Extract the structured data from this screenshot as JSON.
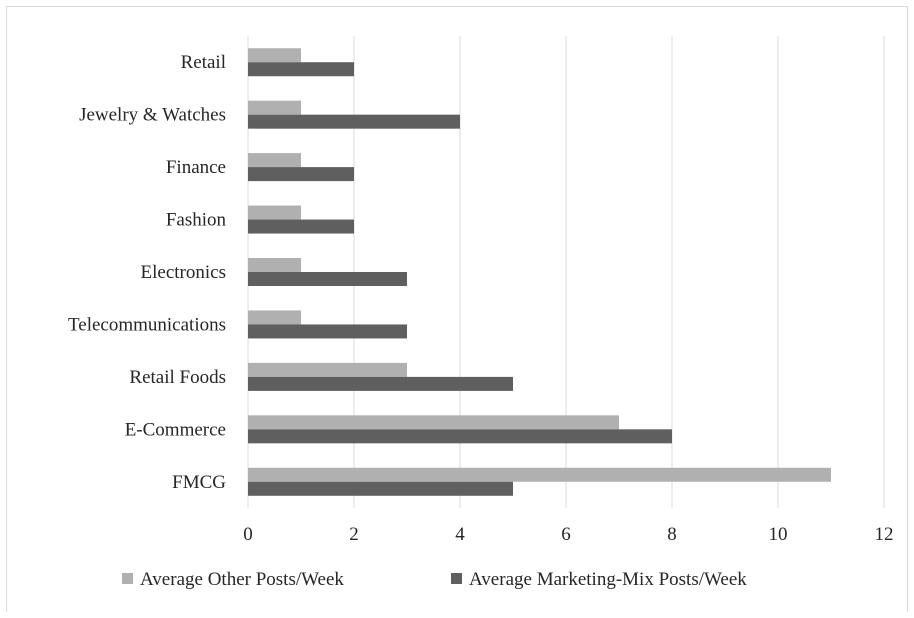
{
  "chart_data": {
    "type": "bar",
    "orientation": "horizontal",
    "categories": [
      "Retail",
      "Jewelry & Watches",
      "Finance",
      "Fashion",
      "Electronics",
      "Telecommunications",
      "Retail Foods",
      "E-Commerce",
      "FMCG"
    ],
    "series": [
      {
        "name": "Average Other Posts/Week",
        "color": "#b0b0b0",
        "values": [
          1,
          1,
          1,
          1,
          1,
          1,
          3,
          7,
          11
        ]
      },
      {
        "name": "Average Marketing-Mix Posts/Week",
        "color": "#5f5f5f",
        "values": [
          2,
          4,
          2,
          2,
          3,
          3,
          5,
          8,
          5
        ]
      }
    ],
    "xlim": [
      0,
      12
    ],
    "xticks": [
      0,
      2,
      4,
      6,
      8,
      10,
      12
    ],
    "grid": true,
    "gridline_color": "#d9d9d9",
    "legend_position": "bottom"
  }
}
